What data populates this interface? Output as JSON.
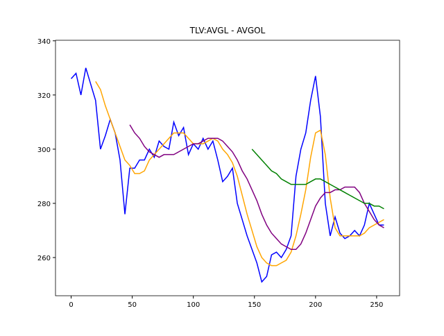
{
  "chart_data": {
    "type": "line",
    "title": "TLV:AVGL - AVGOL",
    "x": [
      0,
      4,
      8,
      12,
      16,
      20,
      24,
      28,
      32,
      36,
      40,
      44,
      48,
      52,
      56,
      60,
      64,
      68,
      72,
      76,
      80,
      84,
      88,
      92,
      96,
      100,
      104,
      108,
      112,
      116,
      120,
      124,
      128,
      132,
      136,
      140,
      144,
      148,
      152,
      156,
      160,
      164,
      168,
      172,
      176,
      180,
      184,
      188,
      192,
      196,
      200,
      204,
      208,
      212,
      216,
      220,
      224,
      228,
      232,
      236,
      240,
      244,
      248,
      252,
      256
    ],
    "series": [
      {
        "color": "#0000ff",
        "values": [
          326,
          328,
          320,
          330,
          324,
          318,
          300,
          305,
          311,
          306,
          296,
          276,
          293,
          293,
          296,
          296,
          300,
          297,
          303,
          301,
          300,
          310,
          305,
          308,
          298,
          302,
          300,
          304,
          300,
          303,
          296,
          288,
          290,
          293,
          280,
          274,
          268,
          263,
          258,
          251,
          253,
          261,
          262,
          260,
          263,
          268,
          290,
          300,
          306,
          318,
          327,
          312,
          280,
          268,
          275,
          269,
          267,
          268,
          270,
          268,
          272,
          280,
          276,
          272,
          272
        ]
      },
      {
        "color": "#ffa500",
        "values": [
          null,
          null,
          null,
          null,
          null,
          325,
          322,
          316,
          311,
          306,
          301,
          296,
          294,
          291,
          291,
          292,
          296,
          298,
          300,
          302,
          304,
          306,
          306,
          306,
          304,
          302,
          302,
          302,
          303,
          304,
          303,
          300,
          298,
          295,
          290,
          283,
          276,
          270,
          264,
          260,
          258,
          257,
          257,
          258,
          259,
          262,
          268,
          276,
          285,
          297,
          306,
          307,
          298,
          282,
          271,
          268,
          268,
          268,
          268,
          268,
          269,
          271,
          272,
          273,
          274
        ]
      },
      {
        "color": "#800080",
        "values": [
          null,
          null,
          null,
          null,
          null,
          null,
          null,
          null,
          null,
          null,
          null,
          null,
          309,
          306,
          304,
          301,
          299,
          298,
          297,
          298,
          298,
          298,
          299,
          300,
          301,
          302,
          302,
          303,
          304,
          304,
          304,
          303,
          301,
          299,
          296,
          292,
          289,
          285,
          281,
          276,
          272,
          269,
          267,
          265,
          264,
          263,
          263,
          265,
          269,
          274,
          279,
          282,
          284,
          284,
          285,
          285,
          286,
          286,
          286,
          284,
          280,
          277,
          274,
          272,
          271
        ]
      },
      {
        "color": "#008000",
        "values": [
          null,
          null,
          null,
          null,
          null,
          null,
          null,
          null,
          null,
          null,
          null,
          null,
          null,
          null,
          null,
          null,
          null,
          null,
          null,
          null,
          null,
          null,
          null,
          null,
          null,
          null,
          null,
          null,
          null,
          null,
          null,
          null,
          null,
          null,
          null,
          null,
          null,
          300,
          298,
          296,
          294,
          292,
          291,
          289,
          288,
          287,
          287,
          287,
          287,
          288,
          289,
          289,
          288,
          287,
          286,
          285,
          284,
          283,
          282,
          281,
          280,
          280,
          279,
          279,
          278
        ]
      }
    ],
    "xlim": [
      -12.8,
      268.8
    ],
    "ylim": [
      245.9,
      340.2
    ],
    "xticks": [
      0,
      50,
      100,
      150,
      200,
      250
    ],
    "yticks": [
      260,
      280,
      300,
      320,
      340
    ]
  }
}
